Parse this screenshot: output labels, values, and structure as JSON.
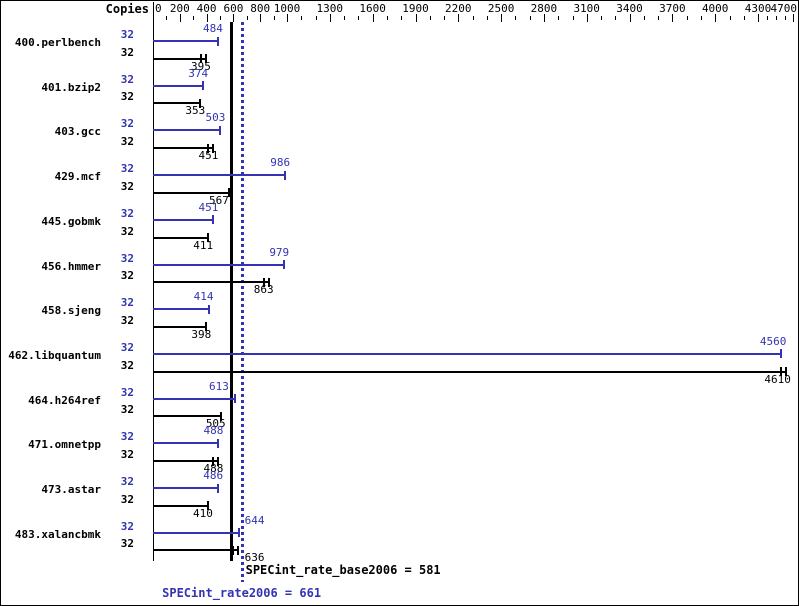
{
  "chart_data": {
    "type": "bar",
    "orientation": "horizontal",
    "copies_header": "Copies",
    "xlim": [
      0,
      4700
    ],
    "minor_tick_step": 100,
    "axis_labels": [
      0,
      200,
      400,
      600,
      800,
      1000,
      1300,
      1600,
      1900,
      2200,
      2500,
      2800,
      3100,
      3400,
      3700,
      4000,
      4300,
      4700
    ],
    "categories": [
      "400.perlbench",
      "401.bzip2",
      "403.gcc",
      "429.mcf",
      "445.gobmk",
      "456.hmmer",
      "458.sjeng",
      "462.libquantum",
      "464.h264ref",
      "471.omnetpp",
      "473.astar",
      "483.xalancbmk"
    ],
    "series": [
      {
        "name": "SPECint_rate2006",
        "role": "peak",
        "color": "#3333b4",
        "copies": [
          32,
          32,
          32,
          32,
          32,
          32,
          32,
          32,
          32,
          32,
          32,
          32
        ],
        "values": [
          484,
          374,
          503,
          986,
          451,
          979,
          414,
          4560,
          613,
          488,
          486,
          644
        ]
      },
      {
        "name": "SPECint_rate_base2006",
        "role": "base",
        "color": "#000000",
        "copies": [
          32,
          32,
          32,
          32,
          32,
          32,
          32,
          32,
          32,
          32,
          32,
          32
        ],
        "values": [
          395,
          353,
          451,
          567,
          411,
          863,
          398,
          4610,
          505,
          488,
          410,
          636
        ],
        "run_spread_marks": [
          true,
          false,
          true,
          false,
          false,
          true,
          false,
          true,
          false,
          true,
          false,
          true
        ]
      }
    ],
    "reference_lines": [
      {
        "label": "SPECint_rate_base2006 = 581",
        "value": 581,
        "style": "solid",
        "color": "#000000"
      },
      {
        "label": "SPECint_rate2006 = 661",
        "value": 661,
        "style": "dotted",
        "color": "#3333b4"
      }
    ],
    "legend_position": "none",
    "grid": false
  }
}
